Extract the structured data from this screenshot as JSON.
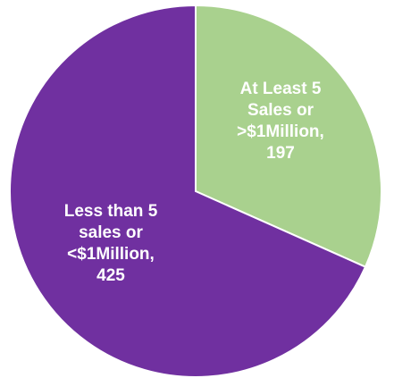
{
  "chart_data": {
    "type": "pie",
    "title": "",
    "slices": [
      {
        "label_lines": [
          "At Least 5",
          "Sales or",
          ">$1Million,",
          "197"
        ],
        "category": "At Least 5 Sales or >$1Million",
        "value": 197,
        "color": "#a9d18e"
      },
      {
        "label_lines": [
          "Less than 5",
          "sales or",
          "<$1Million,",
          "425"
        ],
        "category": "Less than 5 sales or <$1Million",
        "value": 425,
        "color": "#7030a0"
      }
    ],
    "start_angle_deg": 0,
    "direction": "clockwise"
  }
}
